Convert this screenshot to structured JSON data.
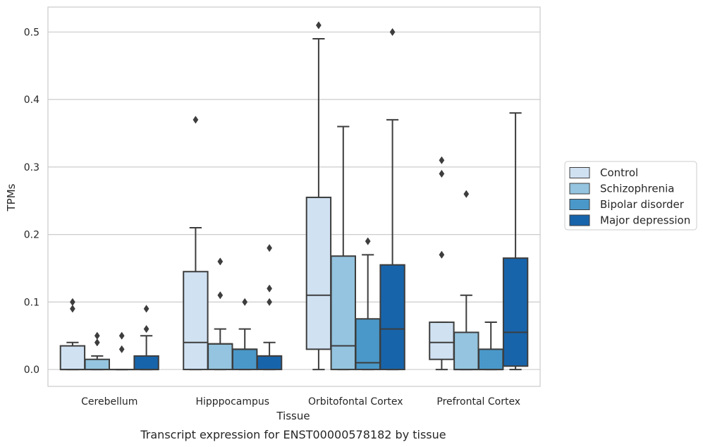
{
  "chart_data": {
    "type": "box",
    "xlabel": "Tissue",
    "ylabel": "TPMs",
    "caption": "Transcript expression for ENST00000578182 by tissue",
    "ylim": [
      -0.025,
      0.537
    ],
    "yticks": [
      "0.0",
      "0.1",
      "0.2",
      "0.3",
      "0.4",
      "0.5"
    ],
    "grid": true,
    "legend_position": "right",
    "categories": [
      "Cerebellum",
      "Hipppocampus",
      "Orbitofontal Cortex",
      "Prefrontal Cortex"
    ],
    "series": [
      {
        "name": "Control",
        "color": "#d0e1f2",
        "boxes": [
          {
            "whislo": 0,
            "q1": 0,
            "med": 0,
            "q3": 0.035,
            "whishi": 0.04,
            "fliers": [
              0.09,
              0.1
            ]
          },
          {
            "whislo": 0,
            "q1": 0,
            "med": 0.04,
            "q3": 0.145,
            "whishi": 0.21,
            "fliers": [
              0.37
            ]
          },
          {
            "whislo": 0,
            "q1": 0.03,
            "med": 0.11,
            "q3": 0.255,
            "whishi": 0.49,
            "fliers": [
              0.51
            ]
          },
          {
            "whislo": 0,
            "q1": 0.015,
            "med": 0.04,
            "q3": 0.07,
            "whishi": 0.07,
            "fliers": [
              0.17,
              0.29,
              0.31
            ]
          }
        ]
      },
      {
        "name": "Schizophrenia",
        "color": "#94c4df",
        "boxes": [
          {
            "whislo": 0,
            "q1": 0,
            "med": 0,
            "q3": 0.015,
            "whishi": 0.02,
            "fliers": [
              0.04,
              0.05
            ]
          },
          {
            "whislo": 0,
            "q1": 0,
            "med": 0.038,
            "q3": 0.038,
            "whishi": 0.06,
            "fliers": [
              0.11,
              0.16
            ]
          },
          {
            "whislo": 0,
            "q1": 0,
            "med": 0.035,
            "q3": 0.168,
            "whishi": 0.36,
            "fliers": []
          },
          {
            "whislo": 0,
            "q1": 0,
            "med": 0,
            "q3": 0.055,
            "whishi": 0.11,
            "fliers": [
              0.26
            ]
          }
        ]
      },
      {
        "name": "Bipolar disorder",
        "color": "#4a98c9",
        "boxes": [
          {
            "whislo": 0,
            "q1": 0,
            "med": 0,
            "q3": 0,
            "whishi": 0,
            "fliers": [
              0.03,
              0.05
            ]
          },
          {
            "whislo": 0,
            "q1": 0,
            "med": 0.03,
            "q3": 0.03,
            "whishi": 0.06,
            "fliers": [
              0.1
            ]
          },
          {
            "whislo": 0,
            "q1": 0,
            "med": 0.01,
            "q3": 0.075,
            "whishi": 0.17,
            "fliers": [
              0.19
            ]
          },
          {
            "whislo": 0,
            "q1": 0,
            "med": 0,
            "q3": 0.03,
            "whishi": 0.07,
            "fliers": []
          }
        ]
      },
      {
        "name": "Major depression",
        "color": "#1764ab",
        "boxes": [
          {
            "whislo": 0,
            "q1": 0,
            "med": 0,
            "q3": 0.02,
            "whishi": 0.05,
            "fliers": [
              0.06,
              0.09
            ]
          },
          {
            "whislo": 0,
            "q1": 0,
            "med": 0.02,
            "q3": 0.02,
            "whishi": 0.04,
            "fliers": [
              0.1,
              0.12,
              0.18
            ]
          },
          {
            "whislo": 0,
            "q1": 0,
            "med": 0.06,
            "q3": 0.155,
            "whishi": 0.37,
            "fliers": [
              0.5
            ]
          },
          {
            "whislo": 0,
            "q1": 0.005,
            "med": 0.055,
            "q3": 0.165,
            "whishi": 0.38,
            "fliers": []
          }
        ]
      }
    ]
  }
}
